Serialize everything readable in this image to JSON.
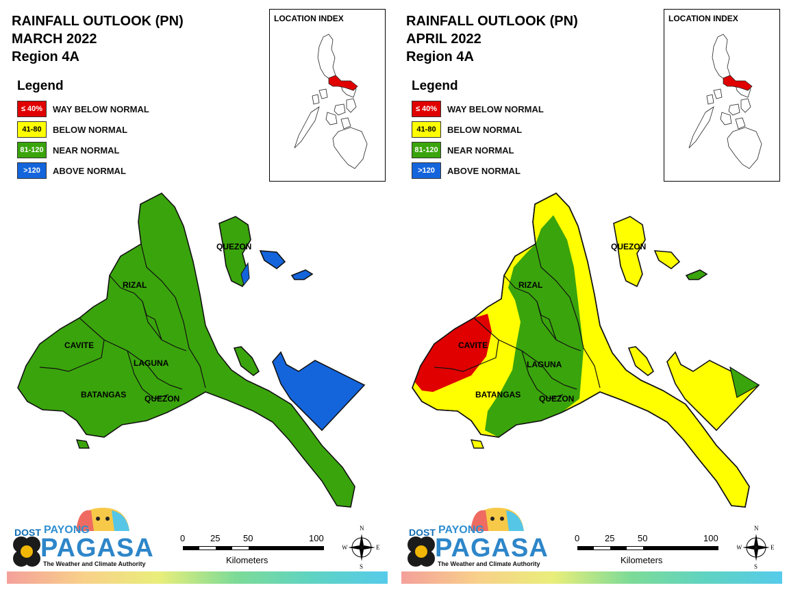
{
  "panels": [
    {
      "title_line1": "RAINFALL OUTLOOK (PN)",
      "title_line2": "MARCH 2022",
      "title_line3": "Region 4A",
      "legend_title": "Legend",
      "legend": [
        {
          "swatch": "≤ 40%",
          "label": "WAY BELOW NORMAL",
          "color": "#e00000"
        },
        {
          "swatch": "41-80",
          "label": "BELOW NORMAL",
          "color": "#ffff00"
        },
        {
          "swatch": "81-120",
          "label": "NEAR NORMAL",
          "color": "#3aa40c"
        },
        {
          "swatch": ">120",
          "label": "ABOVE NORMAL",
          "color": "#1465dc"
        }
      ],
      "location_index_title": "LOCATION INDEX",
      "map_labels": {
        "rizal": "RIZAL",
        "cavite": "CAVITE",
        "laguna": "LAGUNA",
        "batangas": "BATANGAS",
        "quezon_south": "QUEZON",
        "quezon_north": "QUEZON"
      },
      "map_zones": {
        "rizal": "near-normal",
        "cavite": "near-normal",
        "laguna": "near-normal",
        "batangas": "near-normal",
        "quezon": "near-normal",
        "bondoc_tip": "above-normal",
        "polillo": "near-normal"
      },
      "scale": {
        "ticks": [
          "0",
          "25",
          "50",
          "100"
        ],
        "unit": "Kilometers"
      },
      "compass": {
        "n": "N",
        "e": "E",
        "s": "S",
        "w": "W"
      },
      "logo": {
        "dost": "DOST",
        "payong": "PAYONG",
        "pagasa": "PAGASA",
        "tagline": "The Weather and Climate Authority"
      }
    },
    {
      "title_line1": "RAINFALL OUTLOOK (PN)",
      "title_line2": "APRIL 2022",
      "title_line3": "Region 4A",
      "legend_title": "Legend",
      "legend": [
        {
          "swatch": "≤ 40%",
          "label": "WAY BELOW NORMAL",
          "color": "#e00000"
        },
        {
          "swatch": "41-80",
          "label": "BELOW NORMAL",
          "color": "#ffff00"
        },
        {
          "swatch": "81-120",
          "label": "NEAR NORMAL",
          "color": "#3aa40c"
        },
        {
          "swatch": ">120",
          "label": "ABOVE NORMAL",
          "color": "#1465dc"
        }
      ],
      "location_index_title": "LOCATION INDEX",
      "map_labels": {
        "rizal": "RIZAL",
        "cavite": "CAVITE",
        "laguna": "LAGUNA",
        "batangas": "BATANGAS",
        "quezon_south": "QUEZON",
        "quezon_north": "QUEZON"
      },
      "map_zones": {
        "cavite": "way-below-normal",
        "west_coast": "below-normal",
        "central": "near-normal",
        "east": "below-normal",
        "bondoc_tip": "near-normal"
      },
      "scale": {
        "ticks": [
          "0",
          "25",
          "50",
          "100"
        ],
        "unit": "Kilometers"
      },
      "compass": {
        "n": "N",
        "e": "E",
        "s": "S",
        "w": "W"
      },
      "logo": {
        "dost": "DOST",
        "payong": "PAYONG",
        "pagasa": "PAGASA",
        "tagline": "The Weather and Climate Authority"
      }
    }
  ],
  "colors": {
    "way_below": "#e00000",
    "below": "#ffff00",
    "near": "#3aa40c",
    "above": "#1465dc"
  }
}
